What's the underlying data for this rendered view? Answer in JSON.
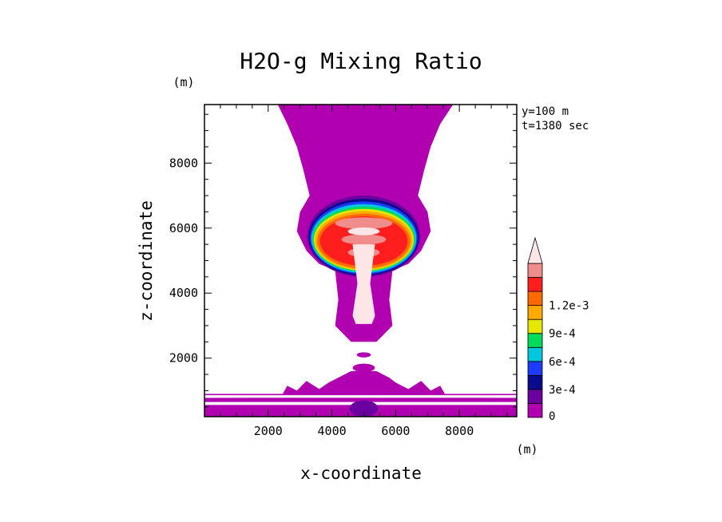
{
  "chart_data": {
    "type": "heatmap",
    "title": "H2O-g Mixing Ratio",
    "xlabel": "x-coordinate",
    "ylabel": "z-coordinate",
    "x_unit": "(m)",
    "y_unit": "(m)",
    "xlim": [
      0,
      9800
    ],
    "ylim": [
      200,
      9800
    ],
    "x_ticks": [
      2000,
      4000,
      6000,
      8000
    ],
    "y_ticks": [
      2000,
      4000,
      6000,
      8000
    ],
    "info_lines": [
      "y=100 m",
      "t=1380 sec"
    ],
    "grid": false,
    "colorbar": {
      "placement": "right",
      "levels": [
        0,
        0.00015,
        0.0003,
        0.00045,
        0.0006,
        0.00075,
        0.0009,
        0.00105,
        0.0012,
        0.00135
      ],
      "colors": [
        "#b000b0",
        "#6a00a0",
        "#0a0a8c",
        "#1e3cff",
        "#00c8dc",
        "#00dc5a",
        "#e6e600",
        "#ffaa00",
        "#ff6a00",
        "#ff1e1e",
        "#f08c8c",
        "#ffe6e6"
      ],
      "tick_labels": [
        "0",
        "3e-4",
        "6e-4",
        "9e-4",
        "1.2e-3"
      ],
      "tick_values": [
        0,
        0.0003,
        0.0006,
        0.0009,
        0.0012
      ]
    }
  }
}
